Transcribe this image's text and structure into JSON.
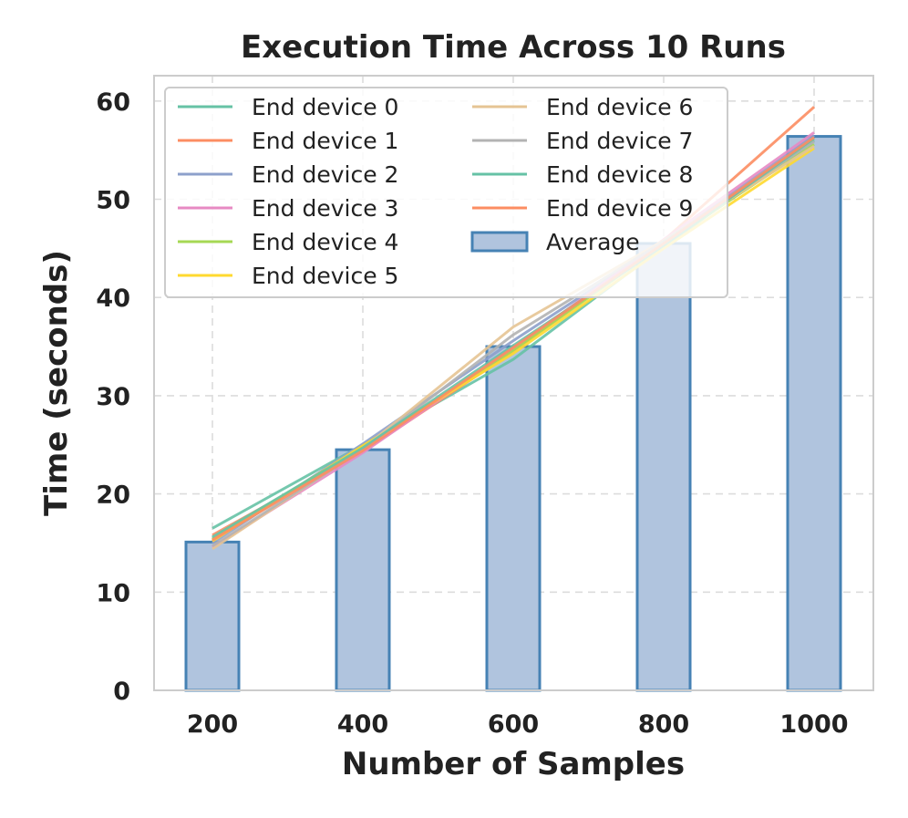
{
  "chart_data": {
    "type": "bar",
    "title": "Execution Time Across 10 Runs",
    "xlabel": "Number of Samples",
    "ylabel": "Time (seconds)",
    "ylim": [
      0,
      62
    ],
    "yticks": [
      0,
      10,
      20,
      30,
      40,
      50,
      60
    ],
    "categories": [
      "200",
      "400",
      "600",
      "800",
      "1000"
    ],
    "grid": true,
    "legend_position": "top-left",
    "bars": {
      "name": "Average",
      "values": [
        15.1,
        24.5,
        35.0,
        45.5,
        56.4
      ],
      "fill": "#b0c4de",
      "edge": "#4682b4"
    },
    "series": [
      {
        "name": "End device 0",
        "color": "#66c2a5",
        "values": [
          16.5,
          25.0,
          33.7,
          45.2,
          56.0
        ]
      },
      {
        "name": "End device 1",
        "color": "#fc8d62",
        "values": [
          15.8,
          24.3,
          34.5,
          45.8,
          59.4
        ]
      },
      {
        "name": "End device 2",
        "color": "#8da0cb",
        "values": [
          15.0,
          25.1,
          35.6,
          45.6,
          56.5
        ]
      },
      {
        "name": "End device 3",
        "color": "#e78ac3",
        "values": [
          14.6,
          24.2,
          34.8,
          45.9,
          56.8
        ]
      },
      {
        "name": "End device 4",
        "color": "#a6d854",
        "values": [
          15.4,
          24.8,
          34.6,
          45.4,
          55.6
        ]
      },
      {
        "name": "End device 5",
        "color": "#ffd92f",
        "values": [
          15.2,
          24.9,
          34.3,
          45.0,
          55.2
        ]
      },
      {
        "name": "End device 6",
        "color": "#e5c494",
        "values": [
          14.4,
          24.6,
          37.0,
          45.8,
          55.4
        ]
      },
      {
        "name": "End device 7",
        "color": "#b3b3b3",
        "values": [
          14.7,
          24.5,
          36.2,
          45.7,
          55.9
        ]
      },
      {
        "name": "End device 8",
        "color": "#66c2a5",
        "values": [
          15.6,
          24.7,
          35.1,
          45.3,
          56.2
        ]
      },
      {
        "name": "End device 9",
        "color": "#fc8d62",
        "values": [
          15.3,
          24.4,
          34.9,
          45.5,
          56.3
        ]
      }
    ]
  }
}
